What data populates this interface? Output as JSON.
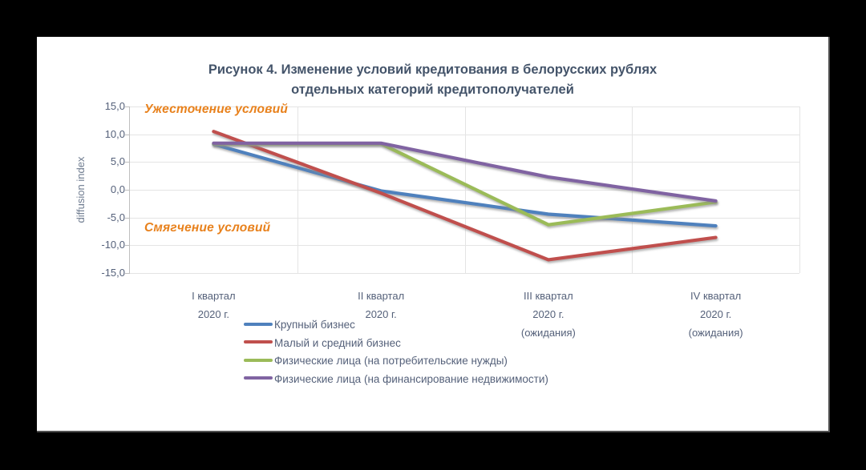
{
  "page": {
    "background": "#000000",
    "card_background": "#ffffff"
  },
  "title": {
    "line1": "Рисунок 4. Изменение условий кредитования в белорусских рублях",
    "line2": "отдельных категорий кредитополучателей",
    "color": "#44546A"
  },
  "annotations": {
    "tighten": "Ужесточение условий",
    "soften": "Смягчение условий",
    "color": "#E8811C"
  },
  "y_axis": {
    "title": "diffusion index",
    "tick_labels": [
      "15,0",
      "10,0",
      "5,0",
      "0,0",
      "-5,0",
      "-10,0",
      "-15,0"
    ],
    "tick_values": [
      15,
      10,
      5,
      0,
      -5,
      -10,
      -15
    ]
  },
  "x_axis": {
    "category_lines": [
      [
        "I квартал",
        "2020 г."
      ],
      [
        "II квартал",
        "2020 г."
      ],
      [
        "III квартал",
        "2020 г.",
        "(ожидания)"
      ],
      [
        "IV квартал",
        "2020 г.",
        "(ожидания)"
      ]
    ]
  },
  "legend": {
    "items": [
      {
        "label": "Крупный бизнес",
        "color": "#4F81BD"
      },
      {
        "label": "Малый и средний бизнес",
        "color": "#C0504D"
      },
      {
        "label": "Физические лица (на потребительские нужды)",
        "color": "#9BBB59"
      },
      {
        "label": "Физические лица (на финансирование недвижимости)",
        "color": "#8064A2"
      }
    ]
  },
  "chart_data": {
    "type": "line",
    "title": "Рисунок 4. Изменение условий кредитования в белорусских рублях отдельных категорий кредитополучателей",
    "ylabel": "diffusion index",
    "ylim": [
      -15,
      15
    ],
    "ytick_step": 5,
    "grid": true,
    "legend_position": "bottom-left",
    "decimal_separator": ",",
    "categories": [
      "I квартал 2020 г.",
      "II квартал 2020 г.",
      "III квартал 2020 г. (ожидания)",
      "IV квартал 2020 г. (ожидания)"
    ],
    "series": [
      {
        "name": "Крупный бизнес",
        "color": "#4F81BD",
        "values": [
          8.2,
          -0.2,
          -4.4,
          -6.5
        ]
      },
      {
        "name": "Малый и средний бизнес",
        "color": "#C0504D",
        "values": [
          10.5,
          -0.6,
          -12.6,
          -8.6
        ]
      },
      {
        "name": "Физические лица (на потребительские нужды)",
        "color": "#9BBB59",
        "values": [
          8.3,
          8.3,
          -6.3,
          -2.2
        ]
      },
      {
        "name": "Физические лица (на финансирование недвижимости)",
        "color": "#8064A2",
        "values": [
          8.4,
          8.4,
          2.3,
          -2.0
        ]
      }
    ],
    "annotations": [
      {
        "text": "Ужесточение условий",
        "region": "upper-left"
      },
      {
        "text": "Смягчение условий",
        "region": "lower-left"
      }
    ]
  }
}
